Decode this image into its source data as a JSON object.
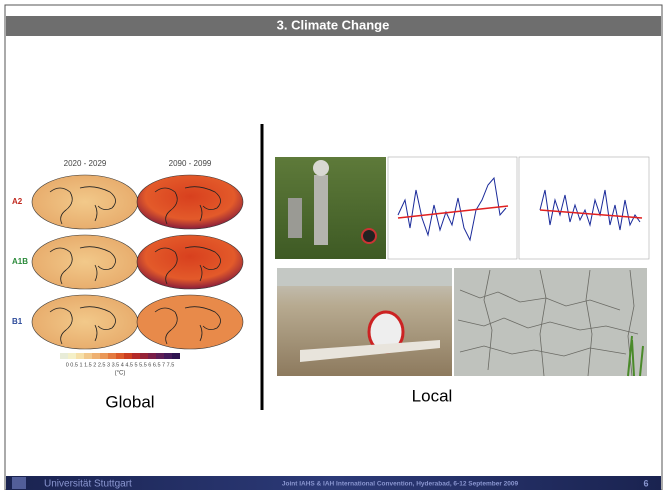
{
  "header": {
    "title": "3. Climate Change"
  },
  "global": {
    "caption": "Global",
    "columns": [
      "2020 - 2029",
      "2090 - 2099"
    ],
    "rows": [
      "A2",
      "A1B",
      "B1"
    ],
    "colorbar_ticks": "0 0.5 1 1.5 2 2.5 3 3.5 4 4.5 5 5.5 6 6.5 7 7.5",
    "colorbar_unit": "(°C)"
  },
  "local": {
    "caption": "Local"
  },
  "footer": {
    "institution": "Universität Stuttgart",
    "event": "Joint IAHS & IAH International Convention, Hyderabad, 6-12 September 2009",
    "page": "6"
  }
}
